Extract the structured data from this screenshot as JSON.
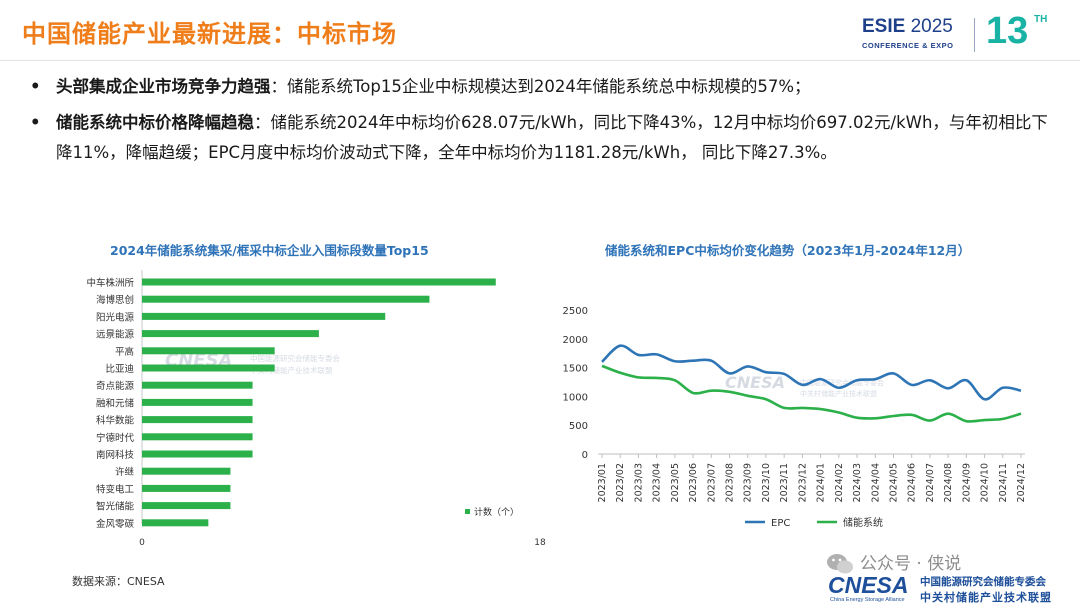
{
  "header": {
    "title": "中国储能产业最新进展：中标市场",
    "logo": {
      "esie": "ESIE",
      "year": "2025",
      "sub": "CONFERENCE & EXPO",
      "num": "13",
      "sup": "TH"
    }
  },
  "bullets": [
    {
      "lead": "头部集成企业市场竞争力趋强",
      "text": "：储能系统Top15企业中标规模达到2024年储能系统总中标规模的57%；"
    },
    {
      "lead": "储能系统中标价格降幅趋稳",
      "text": "：储能系统2024年中标均价628.07元/kWh，同比下降43%，12月中标均价697.02元/kWh，与年初相比下降11%，降幅趋缓；EPC月度中标均价波动式下降，全年中标均价为1181.28元/kWh， 同比下降27.3%。"
    }
  ],
  "chart_data": [
    {
      "type": "bar",
      "orientation": "horizontal",
      "title": "2024年储能系统集采/框采中标企业入围标段数量Top15",
      "categories": [
        "中车株洲所",
        "海博思创",
        "阳光电源",
        "远景能源",
        "平高",
        "比亚迪",
        "奇点能源",
        "融和元储",
        "科华数能",
        "宁德时代",
        "南网科技",
        "许继",
        "特变电工",
        "智光储能",
        "金风零碳"
      ],
      "series": [
        {
          "name": "计数（个）",
          "values": [
            16,
            13,
            11,
            8,
            6,
            6,
            5,
            5,
            5,
            5,
            5,
            4,
            4,
            4,
            3
          ]
        }
      ],
      "xlim": [
        0,
        18
      ],
      "xticks": [
        "0",
        "18"
      ],
      "color": "#2bb04a",
      "legend": "bottom-right"
    },
    {
      "type": "line",
      "title": "储能系统和EPC中标均价变化趋势（2023年1月-2024年12月）",
      "x": [
        "2023/01",
        "2023/02",
        "2023/03",
        "2023/04",
        "2023/05",
        "2023/06",
        "2023/07",
        "2023/08",
        "2023/09",
        "2023/10",
        "2023/11",
        "2023/12",
        "2024/01",
        "2024/02",
        "2024/03",
        "2024/04",
        "2024/05",
        "2024/06",
        "2024/07",
        "2024/08",
        "2024/09",
        "2024/10",
        "2024/11",
        "2024/12"
      ],
      "series": [
        {
          "name": "EPC",
          "color": "#2e75b6",
          "values": [
            1600,
            1880,
            1720,
            1730,
            1610,
            1620,
            1620,
            1400,
            1520,
            1420,
            1390,
            1200,
            1300,
            1150,
            1280,
            1300,
            1400,
            1200,
            1280,
            1140,
            1280,
            950,
            1150,
            1100
          ]
        },
        {
          "name": "储能系统",
          "color": "#2bb04a",
          "values": [
            1530,
            1410,
            1330,
            1320,
            1280,
            1060,
            1100,
            1080,
            1010,
            950,
            800,
            800,
            780,
            720,
            630,
            620,
            660,
            680,
            580,
            700,
            570,
            590,
            610,
            700
          ]
        }
      ],
      "ylim": [
        0,
        2500
      ],
      "yticks": [
        0,
        500,
        1000,
        1500,
        2000,
        2500
      ],
      "legend": "bottom"
    }
  ],
  "watermark": {
    "brand": "CNESA",
    "line1": "中国能源研究会储能专委会",
    "line2": "中关村储能产业技术联盟"
  },
  "source": "数据来源：CNESA",
  "footer": {
    "wechat": "公众号 · 侠说",
    "cnesa": "CNESA",
    "cnesa_en": "China Energy Storage Alliance",
    "cn1": "中国能源研究会储能专委会",
    "cn2": "中关村储能产业技术联盟"
  }
}
